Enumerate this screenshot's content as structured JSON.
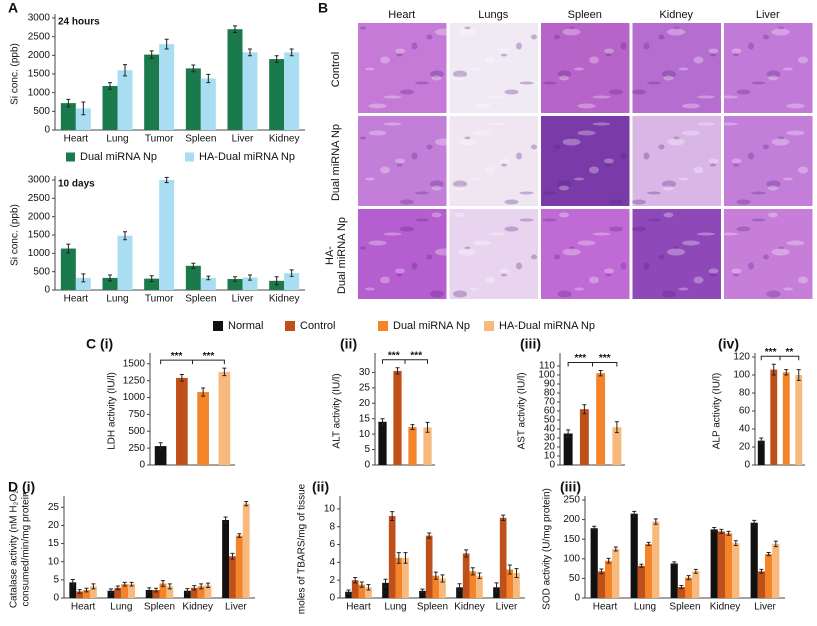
{
  "panel_labels": [
    "A",
    "B"
  ],
  "histology": {
    "columns": [
      "Heart",
      "Lungs",
      "Spleen",
      "Kidney",
      "Liver"
    ],
    "rows": [
      [
        "Control"
      ],
      [
        "Dual miRNA Np"
      ],
      [
        "HA-",
        "Dual miRNA Np"
      ]
    ]
  },
  "chart_data": [
    {
      "type": "bar",
      "annotation": "24 hours",
      "ylabel": [
        "Si conc. (ppb)"
      ],
      "categories": [
        "Heart",
        "Lung",
        "Tumor",
        "Spleen",
        "Liver",
        "Kidney"
      ],
      "series": [
        {
          "name": "Dual miRNA Np",
          "color": "#1b7a4c",
          "values": [
            720,
            1180,
            2020,
            1650,
            2700,
            1900
          ],
          "errors": [
            100,
            90,
            100,
            90,
            90,
            90
          ]
        },
        {
          "name": "HA-Dual miRNA Np",
          "color": "#a9def2",
          "values": [
            580,
            1600,
            2300,
            1380,
            2080,
            2080
          ],
          "errors": [
            170,
            150,
            130,
            110,
            90,
            90
          ]
        }
      ],
      "ylim": [
        0,
        3000
      ],
      "yticks": [
        0,
        500,
        1000,
        1500,
        2000,
        2500,
        3000
      ]
    },
    {
      "type": "bar",
      "annotation": "10 days",
      "ylabel": [
        "Si conc. (ppb)"
      ],
      "categories": [
        "Heart",
        "Lung",
        "Tumor",
        "Spleen",
        "Liver",
        "Kidney"
      ],
      "series": [
        {
          "color": "#1b7a4c",
          "values": [
            1130,
            330,
            310,
            660,
            300,
            250
          ],
          "errors": [
            120,
            80,
            80,
            70,
            60,
            110
          ]
        },
        {
          "color": "#a9def2",
          "values": [
            330,
            1480,
            3000,
            330,
            340,
            460
          ],
          "errors": [
            110,
            110,
            70,
            50,
            70,
            90
          ]
        }
      ],
      "ylim": [
        0,
        3000
      ],
      "yticks": [
        0,
        500,
        1000,
        1500,
        2000,
        2500,
        3000
      ]
    },
    {
      "type": "bar",
      "panel_label": "C (i)",
      "ylabel": [
        "LDH activity (IU/l)"
      ],
      "annotations": [
        "***",
        "***"
      ],
      "series": [
        {
          "name": "Normal",
          "color": "#111111",
          "values": [
            280
          ],
          "errors": [
            50
          ]
        },
        {
          "name": "Control",
          "color": "#c0501a",
          "values": [
            1290
          ],
          "errors": [
            50
          ]
        },
        {
          "name": "Dual miRNA Np",
          "color": "#f4842a",
          "values": [
            1080
          ],
          "errors": [
            60
          ]
        },
        {
          "name": "HA-Dual miRNA Np",
          "color": "#f8b97c",
          "values": [
            1380
          ],
          "errors": [
            55
          ]
        }
      ],
      "ylim": [
        0,
        1600
      ],
      "yticks": [
        0,
        250,
        500,
        750,
        1000,
        1250,
        1500
      ]
    },
    {
      "type": "bar",
      "panel_label": "(ii)",
      "ylabel": [
        "ALT activity (IU/l)"
      ],
      "annotations": [
        "***",
        "***"
      ],
      "series": [
        {
          "color": "#111111",
          "values": [
            14
          ],
          "errors": [
            1
          ]
        },
        {
          "color": "#c0501a",
          "values": [
            30.5
          ],
          "errors": [
            1
          ]
        },
        {
          "color": "#f4842a",
          "values": [
            12.3
          ],
          "errors": [
            0.8
          ]
        },
        {
          "color": "#f8b97c",
          "values": [
            12.2
          ],
          "errors": [
            1.6
          ]
        }
      ],
      "ylim": [
        0,
        35
      ],
      "yticks": [
        0,
        5,
        10,
        15,
        20,
        25,
        30
      ]
    },
    {
      "type": "bar",
      "panel_label": "(iii)",
      "ylabel": [
        "AST activity (IU/l)"
      ],
      "annotations": [
        "***",
        "***"
      ],
      "series": [
        {
          "color": "#111111",
          "values": [
            35
          ],
          "errors": [
            4
          ]
        },
        {
          "color": "#c0501a",
          "values": [
            62
          ],
          "errors": [
            5
          ]
        },
        {
          "color": "#f4842a",
          "values": [
            102
          ],
          "errors": [
            3
          ]
        },
        {
          "color": "#f8b97c",
          "values": [
            42
          ],
          "errors": [
            6
          ]
        }
      ],
      "ylim": [
        0,
        120
      ],
      "yticks": [
        0,
        10,
        20,
        30,
        40,
        50,
        60,
        70,
        80,
        90,
        100,
        110
      ]
    },
    {
      "type": "bar",
      "panel_label": "(iv)",
      "ylabel": [
        "ALP activity (IU/l)"
      ],
      "annotations": [
        "***",
        "**"
      ],
      "series": [
        {
          "color": "#111111",
          "values": [
            27
          ],
          "errors": [
            3
          ]
        },
        {
          "color": "#c0501a",
          "values": [
            106
          ],
          "errors": [
            6
          ]
        },
        {
          "color": "#f4842a",
          "values": [
            103
          ],
          "errors": [
            3
          ]
        },
        {
          "color": "#f8b97c",
          "values": [
            100
          ],
          "errors": [
            6
          ]
        }
      ],
      "ylim": [
        0,
        120
      ],
      "yticks": [
        0,
        20,
        40,
        60,
        80,
        100,
        120
      ]
    },
    {
      "type": "bar",
      "panel_label": "D (i)",
      "ylabel": [
        "Catalase activity (nM H₂O₂",
        "consumed/min/mg protein"
      ],
      "categories": [
        "Heart",
        "Lung",
        "Spleen",
        "Kidney",
        "Liver"
      ],
      "series": [
        {
          "color": "#111111",
          "values": [
            4.3,
            2.0,
            2.2,
            2.0,
            21.5
          ],
          "errors": [
            0.8,
            0.5,
            0.6,
            0.6,
            0.8
          ]
        },
        {
          "color": "#c0501a",
          "values": [
            1.8,
            2.8,
            2.2,
            2.8,
            11.5
          ],
          "errors": [
            0.5,
            0.5,
            0.5,
            0.6,
            0.8
          ]
        },
        {
          "color": "#f4842a",
          "values": [
            2.2,
            3.8,
            4.0,
            3.2,
            17.2
          ],
          "errors": [
            0.5,
            0.5,
            0.8,
            0.7,
            0.5
          ]
        },
        {
          "color": "#f8b97c",
          "values": [
            3.2,
            3.8,
            3.2,
            3.5,
            26
          ],
          "errors": [
            0.7,
            0.5,
            0.7,
            0.6,
            0.6
          ]
        }
      ],
      "ylim": [
        0,
        27
      ],
      "yticks": [
        0,
        5,
        10,
        15,
        20,
        25
      ]
    },
    {
      "type": "bar",
      "panel_label": "(ii)",
      "ylabel": [
        "moles of TBARS/mg of tissue"
      ],
      "categories": [
        "Heart",
        "Lung",
        "Spleen",
        "Kidney",
        "Liver"
      ],
      "series": [
        {
          "color": "#111111",
          "values": [
            0.7,
            1.7,
            0.8,
            1.2,
            1.2
          ],
          "errors": [
            0.2,
            0.4,
            0.2,
            0.4,
            0.5
          ]
        },
        {
          "color": "#c0501a",
          "values": [
            2,
            9.2,
            7,
            5,
            9
          ],
          "errors": [
            0.3,
            0.5,
            0.3,
            0.4,
            0.3
          ]
        },
        {
          "color": "#f4842a",
          "values": [
            1.5,
            4.5,
            2.5,
            3,
            3.2
          ],
          "errors": [
            0.3,
            0.6,
            0.4,
            0.4,
            0.5
          ]
        },
        {
          "color": "#f8b97c",
          "values": [
            1.2,
            4.5,
            2.2,
            2.5,
            2.8
          ],
          "errors": [
            0.3,
            0.6,
            0.4,
            0.3,
            0.5
          ]
        }
      ],
      "ylim": [
        0,
        11
      ],
      "yticks": [
        0,
        2,
        4,
        6,
        8,
        10
      ]
    },
    {
      "type": "bar",
      "panel_label": "(iii)",
      "ylabel": [
        "SOD activity (U/mg protein)"
      ],
      "categories": [
        "Heart",
        "Lung",
        "Spleen",
        "Kidney",
        "Liver"
      ],
      "series": [
        {
          "color": "#111111",
          "values": [
            178,
            215,
            88,
            175,
            192
          ],
          "errors": [
            5,
            6,
            4,
            5,
            6
          ]
        },
        {
          "color": "#c0501a",
          "values": [
            68,
            82,
            28,
            170,
            68
          ],
          "errors": [
            6,
            4,
            4,
            5,
            5
          ]
        },
        {
          "color": "#f4842a",
          "values": [
            95,
            138,
            52,
            165,
            112
          ],
          "errors": [
            6,
            4,
            5,
            5,
            4
          ]
        },
        {
          "color": "#f8b97c",
          "values": [
            125,
            195,
            68,
            140,
            138
          ],
          "errors": [
            5,
            7,
            5,
            6,
            7
          ]
        }
      ],
      "ylim": [
        0,
        250
      ],
      "yticks": [
        0,
        50,
        100,
        150,
        200,
        250
      ]
    }
  ]
}
